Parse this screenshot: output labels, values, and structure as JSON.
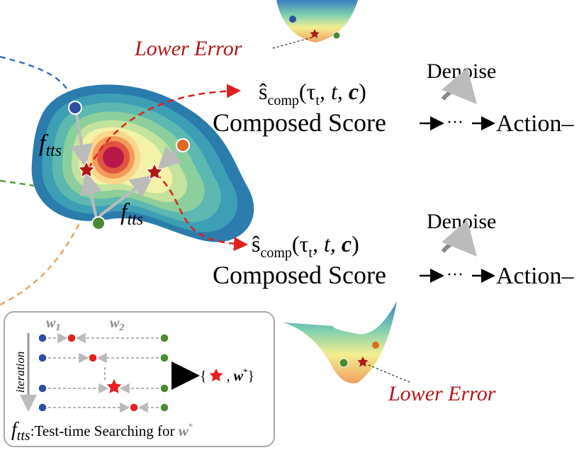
{
  "bowls": [
    {
      "annotation": "Lower Error"
    },
    {
      "annotation": "Lower Error"
    }
  ],
  "pipelines": [
    {
      "formula": {
        "symbol": "ŝ",
        "subscript": "comp",
        "open": "(τ",
        "tau_subscript": "t",
        "middle": ", t, ",
        "bold_arg": "c",
        "close": ")"
      },
      "step": "Denoise",
      "composed": "Composed Score",
      "ellipsis": "···",
      "output": "Action–"
    },
    {
      "formula": {
        "symbol": "ŝ",
        "subscript": "comp",
        "open": "(τ",
        "tau_subscript": "t",
        "middle": ", t, ",
        "bold_arg": "c",
        "close": ")"
      },
      "step": "Denoise",
      "composed": "Composed Score",
      "ellipsis": "···",
      "output": "Action–"
    }
  ],
  "blob_labels": [
    {
      "symbol": "f",
      "subscript": "tts"
    },
    {
      "symbol": "f",
      "subscript": "tts"
    }
  ],
  "legend_box": {
    "weights": [
      {
        "symbol": "w",
        "subscript": "1"
      },
      {
        "symbol": "w",
        "subscript": "2"
      }
    ],
    "axis": "iteration",
    "result": {
      "open": "{",
      "sep": ",",
      "weight": "w",
      "weight_sup": "*",
      "close": "}"
    },
    "caption": {
      "symbol": "f",
      "subscript": "tts",
      "text": ":Test-time Searching for ",
      "weight": "w",
      "weight_sup": "*"
    }
  }
}
